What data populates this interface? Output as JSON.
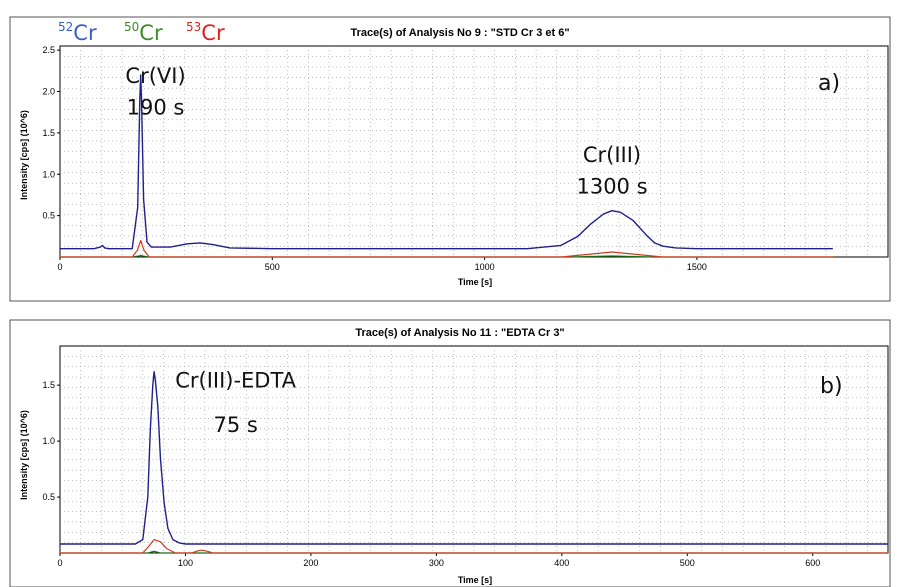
{
  "legend": [
    {
      "mass": "52",
      "element": "Cr",
      "color": "#3a5fc4"
    },
    {
      "mass": "50",
      "element": "Cr",
      "color": "#3f8a2a"
    },
    {
      "mass": "53",
      "element": "Cr",
      "color": "#e02020"
    }
  ],
  "colors": {
    "s52": "#1f1f8f",
    "s50": "#1a6b1a",
    "s53": "#d23a1e"
  },
  "chart_data": [
    {
      "type": "line",
      "panel": "a)",
      "title": "Trace(s) of Analysis No 9 : \"STD Cr 3 et 6\"",
      "xlabel": "Time [s]",
      "ylabel": "Intensity [cps] (10^6)",
      "xlim": [
        0,
        1950
      ],
      "ylim": [
        0,
        2.55
      ],
      "xticks": [
        0,
        500,
        1000,
        1500
      ],
      "xtick_labels": [
        "0",
        "500",
        "1000",
        "1500"
      ],
      "yticks": [
        0.5,
        1.0,
        1.5,
        2.0,
        2.5
      ],
      "ytick_labels": [
        "0.5",
        "1.0",
        "1.5",
        "2.0",
        "2.5"
      ],
      "grid": true,
      "series": [
        {
          "name": "52Cr",
          "x": [
            0,
            80,
            95,
            100,
            105,
            115,
            170,
            183,
            188,
            190,
            192,
            197,
            205,
            215,
            260,
            300,
            330,
            360,
            400,
            500,
            800,
            1100,
            1180,
            1220,
            1250,
            1280,
            1300,
            1320,
            1350,
            1380,
            1400,
            1420,
            1450,
            1500,
            1820
          ],
          "y": [
            0.1,
            0.1,
            0.12,
            0.14,
            0.11,
            0.1,
            0.1,
            0.6,
            1.9,
            2.2,
            1.9,
            0.7,
            0.18,
            0.12,
            0.12,
            0.16,
            0.17,
            0.15,
            0.11,
            0.1,
            0.1,
            0.1,
            0.14,
            0.25,
            0.4,
            0.52,
            0.56,
            0.54,
            0.44,
            0.27,
            0.17,
            0.13,
            0.11,
            0.1,
            0.1
          ]
        },
        {
          "name": "50Cr",
          "x": [
            0,
            170,
            188,
            190,
            192,
            210,
            1200,
            1300,
            1400,
            1820
          ],
          "y": [
            0.0,
            0.0,
            0.015,
            0.02,
            0.015,
            0.0,
            0.0,
            0.012,
            0.0,
            0.0
          ]
        },
        {
          "name": "53Cr",
          "x": [
            0,
            170,
            182,
            190,
            198,
            210,
            1180,
            1240,
            1300,
            1360,
            1420,
            1820
          ],
          "y": [
            0.0,
            0.0,
            0.08,
            0.2,
            0.08,
            0.0,
            0.0,
            0.03,
            0.06,
            0.03,
            0.0,
            0.0
          ]
        }
      ],
      "annotations": [
        {
          "text": "Cr(VI)",
          "x": 225,
          "y": 2.1
        },
        {
          "text": "190 s",
          "x": 225,
          "y": 1.72
        },
        {
          "text": "Cr(III)",
          "x": 1300,
          "y": 1.15
        },
        {
          "text": "1300 s",
          "x": 1300,
          "y": 0.77
        }
      ]
    },
    {
      "type": "line",
      "panel": "b)",
      "title": "Trace(s) of Analysis No 11 : \"EDTA Cr 3\"",
      "xlabel": "Time [s]",
      "ylabel": "Intensity [cps] (10^6)",
      "xlim": [
        0,
        660
      ],
      "ylim": [
        0,
        1.85
      ],
      "xticks": [
        0,
        100,
        200,
        300,
        400,
        500,
        600
      ],
      "xtick_labels": [
        "0",
        "100",
        "200",
        "300",
        "400",
        "500",
        "600"
      ],
      "yticks": [
        0.5,
        1.0,
        1.5
      ],
      "ytick_labels": [
        "0.5",
        "1.0",
        "1.5"
      ],
      "grid": true,
      "series": [
        {
          "name": "52Cr",
          "x": [
            0,
            60,
            66,
            70,
            72,
            74,
            75,
            76,
            78,
            80,
            83,
            86,
            90,
            95,
            100,
            110,
            660
          ],
          "y": [
            0.08,
            0.08,
            0.12,
            0.5,
            1.1,
            1.5,
            1.62,
            1.55,
            1.3,
            0.85,
            0.45,
            0.22,
            0.12,
            0.09,
            0.08,
            0.08,
            0.08
          ]
        },
        {
          "name": "50Cr",
          "x": [
            0,
            70,
            75,
            80,
            660
          ],
          "y": [
            0.0,
            0.0,
            0.015,
            0.0,
            0.0
          ]
        },
        {
          "name": "53Cr",
          "x": [
            0,
            66,
            70,
            75,
            80,
            85,
            92,
            105,
            110,
            113,
            116,
            122,
            660
          ],
          "y": [
            0.0,
            0.0,
            0.05,
            0.12,
            0.1,
            0.04,
            0.0,
            0.0,
            0.02,
            0.025,
            0.02,
            0.0,
            0.0
          ]
        }
      ],
      "annotations": [
        {
          "text": "Cr(III)-EDTA",
          "x": 140,
          "y": 1.48
        },
        {
          "text": "75 s",
          "x": 140,
          "y": 1.08
        }
      ]
    }
  ]
}
